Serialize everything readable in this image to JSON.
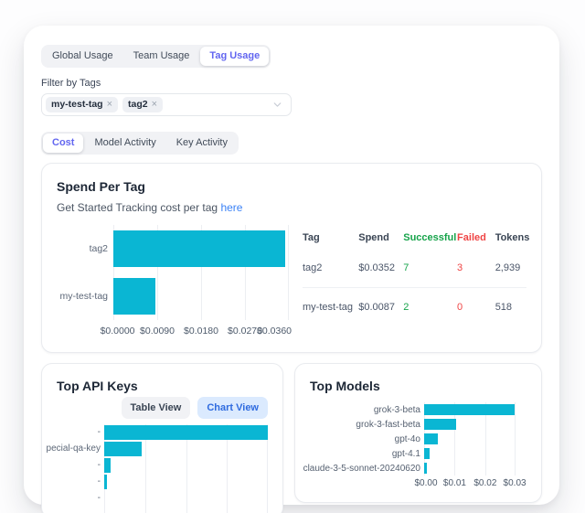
{
  "colors": {
    "accent_indigo": "#6266f0",
    "bar_cyan": "#0ab6d3",
    "link_blue": "#3b82f6",
    "success_green": "#16a34a",
    "failed_red": "#ef4444"
  },
  "page": {
    "tabs": [
      {
        "label": "Global Usage",
        "active": false
      },
      {
        "label": "Team Usage",
        "active": false
      },
      {
        "label": "Tag Usage",
        "active": true
      }
    ],
    "filter": {
      "label": "Filter by Tags",
      "selected_tags": [
        "my-test-tag",
        "tag2"
      ]
    },
    "subtabs": [
      {
        "label": "Cost",
        "active": true
      },
      {
        "label": "Model Activity",
        "active": false
      },
      {
        "label": "Key Activity",
        "active": false
      }
    ]
  },
  "spend_per_tag": {
    "title": "Spend Per Tag",
    "subtitle_text": "Get Started Tracking cost per tag",
    "subtitle_link": "here",
    "chart_data": {
      "type": "bar",
      "orientation": "horizontal",
      "categories": [
        "tag2",
        "my-test-tag"
      ],
      "values": [
        0.0352,
        0.0087
      ],
      "xlim": [
        0,
        0.036
      ],
      "x_ticks": [
        "$0.0000",
        "$0.0090",
        "$0.0180",
        "$0.0270",
        "$0.0360"
      ],
      "grid": true,
      "legend": false
    },
    "table": {
      "columns": [
        {
          "label": "Tag",
          "tone": "default"
        },
        {
          "label": "Spend",
          "tone": "default"
        },
        {
          "label": "Successful",
          "tone": "green"
        },
        {
          "label": "Failed",
          "tone": "red"
        },
        {
          "label": "Tokens",
          "tone": "default"
        }
      ],
      "rows": [
        {
          "cells": [
            "tag2",
            "$0.0352",
            "7",
            "3",
            "2,939"
          ]
        },
        {
          "cells": [
            "my-test-tag",
            "$0.0087",
            "2",
            "0",
            "518"
          ]
        }
      ]
    }
  },
  "top_api_keys": {
    "title": "Top API Keys",
    "view_buttons": [
      {
        "label": "Table View",
        "active": false
      },
      {
        "label": "Chart View",
        "active": true
      }
    ],
    "chart_data": {
      "type": "bar",
      "orientation": "horizontal",
      "categories": [
        "-",
        "pecial-qa-key",
        "-",
        "-",
        "-"
      ],
      "values_relative_to_max": [
        1,
        0.23,
        0.04,
        0.016,
        0
      ],
      "x_axis_visible": false,
      "grid": true,
      "legend": false
    }
  },
  "top_models": {
    "title": "Top Models",
    "chart_data": {
      "type": "bar",
      "orientation": "horizontal",
      "categories": [
        "grok-3-beta",
        "grok-3-fast-beta",
        "gpt-4o",
        "gpt-4.1",
        "claude-3-5-sonnet-20240620"
      ],
      "values": [
        0.0295,
        0.0105,
        0.0046,
        0.0018,
        0.0008
      ],
      "xlim": [
        0,
        0.0305
      ],
      "x_ticks": [
        "$0.00",
        "$0.01",
        "$0.02",
        "$0.03"
      ],
      "grid": true,
      "legend": false
    }
  }
}
